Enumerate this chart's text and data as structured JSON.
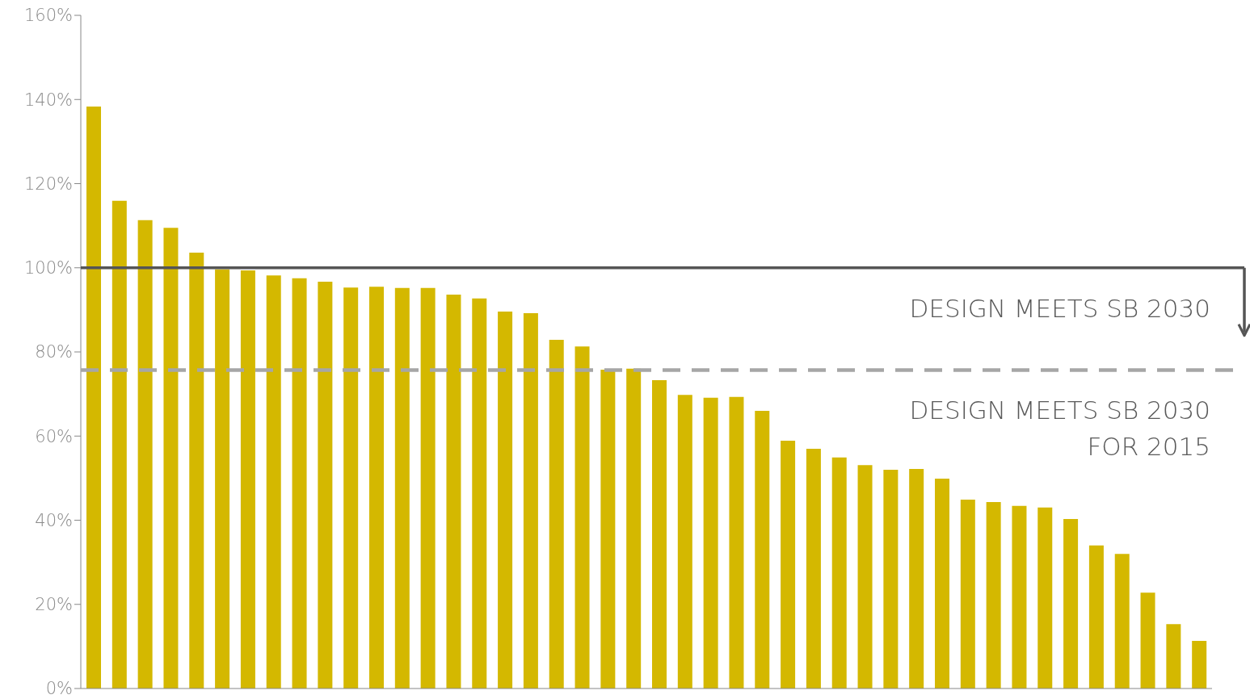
{
  "chart_data": {
    "type": "bar",
    "categories": [
      null,
      null,
      null,
      null,
      null,
      null,
      null,
      null,
      null,
      null,
      null,
      null,
      null,
      null,
      null,
      null,
      null,
      null,
      null,
      null,
      null,
      null,
      null,
      null,
      null,
      null,
      null,
      null,
      null,
      null,
      null,
      null,
      null,
      null,
      null,
      null,
      null,
      null,
      null,
      null,
      null,
      null,
      null,
      null
    ],
    "values": [
      138.3,
      115.9,
      111.3,
      109.5,
      103.6,
      99.6,
      99.4,
      98.2,
      97.5,
      96.7,
      95.3,
      95.5,
      95.2,
      95.2,
      93.6,
      92.7,
      89.6,
      89.2,
      82.9,
      81.3,
      75.8,
      76.0,
      73.3,
      69.8,
      69.1,
      69.3,
      66.0,
      58.9,
      57.0,
      54.9,
      53.1,
      52.0,
      52.2,
      49.9,
      44.9,
      44.3,
      43.4,
      43.0,
      40.3,
      34.0,
      32.0,
      22.8,
      15.3,
      11.3
    ],
    "color": "#d4b800",
    "ylim": [
      0,
      160
    ],
    "yticks": [
      {
        "value": 0,
        "label": "0%"
      },
      {
        "value": 20,
        "label": "20%"
      },
      {
        "value": 40,
        "label": "40%"
      },
      {
        "value": 60,
        "label": "60%"
      },
      {
        "value": 80,
        "label": "80%"
      },
      {
        "value": 100,
        "label": "100%"
      },
      {
        "value": 120,
        "label": "120%"
      },
      {
        "value": 140,
        "label": "140%"
      },
      {
        "value": 160,
        "label": "160%"
      }
    ],
    "ref_lines": [
      {
        "axis": "y",
        "value": 100,
        "label": "DESIGN MEETS SB 2030",
        "color": "#555555",
        "line_style": "solid"
      },
      {
        "axis": "y",
        "value": 75.7,
        "label": "DESIGN MEETS SB 2030\nFOR 2015",
        "color": "#a6a6a6",
        "line_style": "dashed"
      }
    ]
  }
}
